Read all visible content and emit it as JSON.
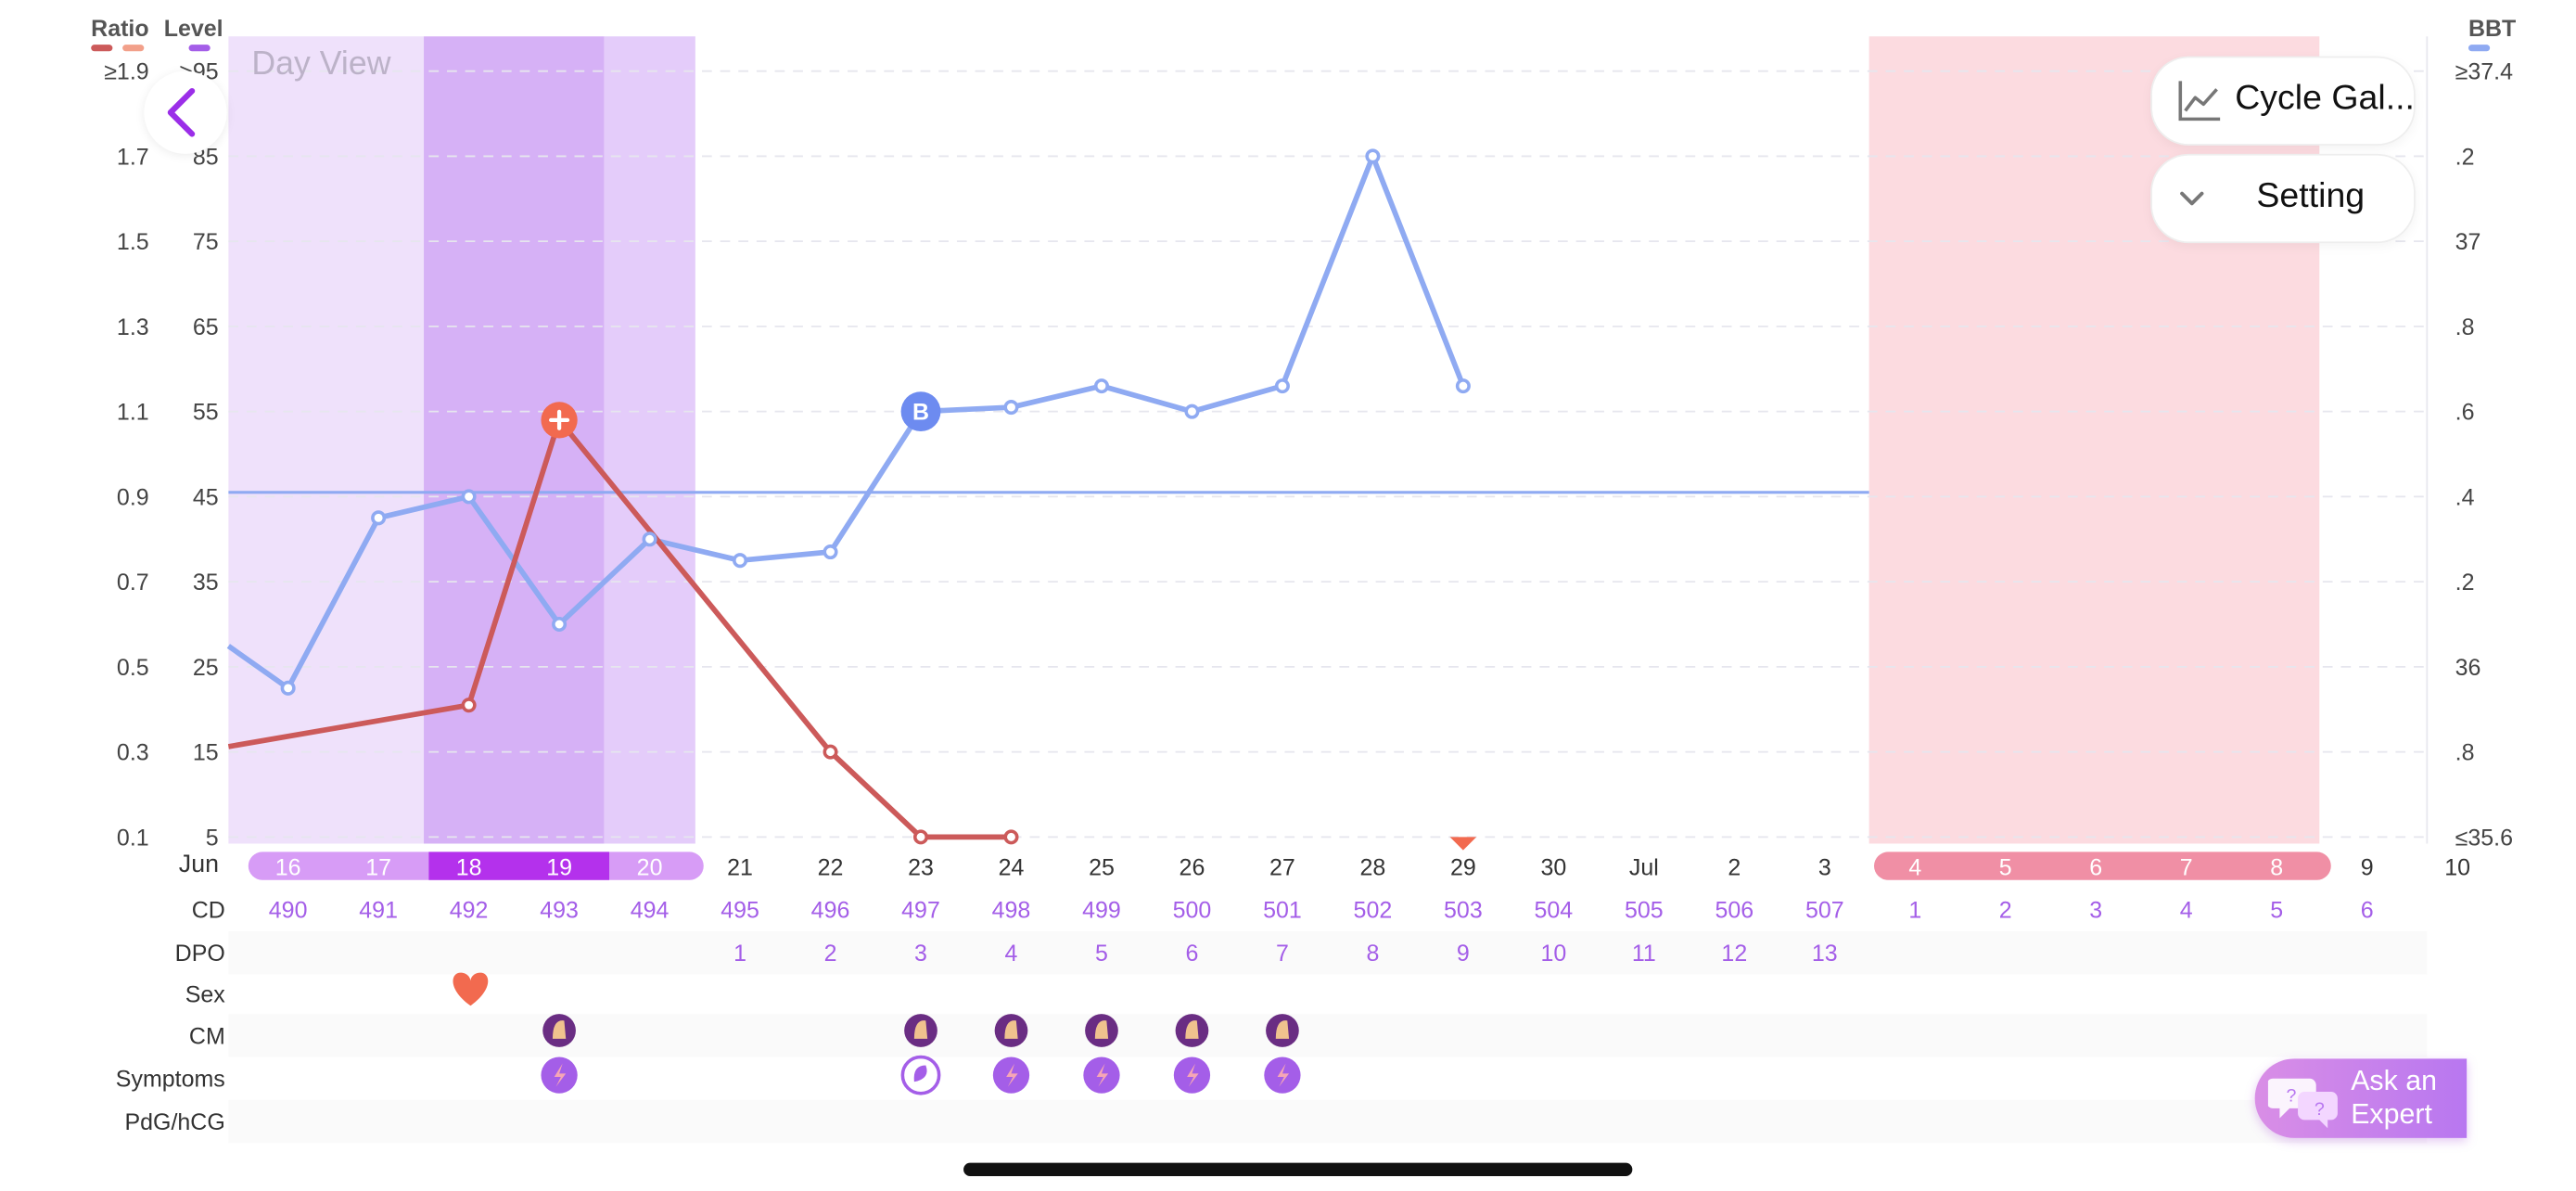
{
  "view_label": "Day View",
  "left_axis": {
    "ratio_title": "Ratio",
    "level_title": "Level",
    "ratio_ticks": [
      "≥1.9",
      "1.7",
      "1.5",
      "1.3",
      "1.1",
      "0.9",
      "0.7",
      "0.5",
      "0.3",
      "0.1"
    ],
    "level_ticks": [
      ">95",
      "85",
      "75",
      "65",
      "55",
      "45",
      "35",
      "25",
      "15",
      "5"
    ]
  },
  "right_axis": {
    "title": "BBT",
    "ticks": [
      "≥37.4",
      ".2",
      "37",
      ".8",
      ".6",
      ".4",
      ".2",
      "36",
      ".8",
      "≤35.6"
    ]
  },
  "colors": {
    "ratio_line": "#cc5a5a",
    "bbt_line": "#8faaf2",
    "fertile_light": "#efe1fb",
    "fertile_mid": "#e4ccfa",
    "ovulation": "#d6b1f6",
    "period": "#fcdbe0",
    "accent": "#9b2ee8"
  },
  "dates": {
    "month_label": "Jun",
    "items": [
      "16",
      "17",
      "18",
      "19",
      "20",
      "21",
      "22",
      "23",
      "24",
      "25",
      "26",
      "27",
      "28",
      "29",
      "30",
      "Jul",
      "2",
      "3",
      "4",
      "5",
      "6",
      "7",
      "8",
      "9",
      "10"
    ]
  },
  "rows": {
    "labels": [
      "CD",
      "DPO",
      "Sex",
      "CM",
      "Symptoms",
      "PdG/hCG"
    ],
    "cd": [
      "490",
      "491",
      "492",
      "493",
      "494",
      "495",
      "496",
      "497",
      "498",
      "499",
      "500",
      "501",
      "502",
      "503",
      "504",
      "505",
      "506",
      "507",
      "1",
      "2",
      "3",
      "4",
      "5",
      "6"
    ],
    "dpo": [
      "1",
      "2",
      "3",
      "4",
      "5",
      "6",
      "7",
      "8",
      "9",
      "10",
      "11",
      "12",
      "13"
    ]
  },
  "chart_data": [
    {
      "type": "line",
      "x": [
        "Jun 15",
        "Jun 16",
        "Jun 17",
        "Jun 18",
        "Jun 19",
        "Jun 20",
        "Jun 21",
        "Jun 22",
        "Jun 23",
        "Jun 24",
        "Jun 25",
        "Jun 26",
        "Jun 27",
        "Jun 28",
        "Jun 29"
      ],
      "series": [
        {
          "name": "BBT",
          "axis": "right",
          "values": [
            36.1,
            35.95,
            36.35,
            36.4,
            36.1,
            36.3,
            36.25,
            36.27,
            36.6,
            36.61,
            36.66,
            36.6,
            36.66,
            37.2,
            36.66
          ],
          "color": "#8faaf2",
          "marker_on": "Jun 23",
          "marker_label": "B"
        },
        {
          "name": "Ratio",
          "axis": "left",
          "values": [
            {
              "x": "Jun 15",
              "y": 0.3
            },
            {
              "x": "Jun 18",
              "y": 0.41
            },
            {
              "x": "Jun 19",
              "y": 1.08
            },
            {
              "x": "Jun 22",
              "y": 0.3
            },
            {
              "x": "Jun 23",
              "y": 0.1
            },
            {
              "x": "Jun 24",
              "y": 0.1
            }
          ],
          "color": "#cc5a5a"
        }
      ],
      "coverline": 36.41,
      "ylim_left_ratio": [
        0.1,
        1.9
      ],
      "ylim_left_level": [
        5,
        95
      ],
      "ylim_right": [
        35.6,
        37.4
      ],
      "ovulation_marker": "Jun 29",
      "grid": true
    }
  ],
  "cycle_gallery": {
    "label": "Cycle Gal..."
  },
  "setting": {
    "label": "Setting"
  },
  "expert": {
    "line1": "Ask an",
    "line2": "Expert"
  }
}
